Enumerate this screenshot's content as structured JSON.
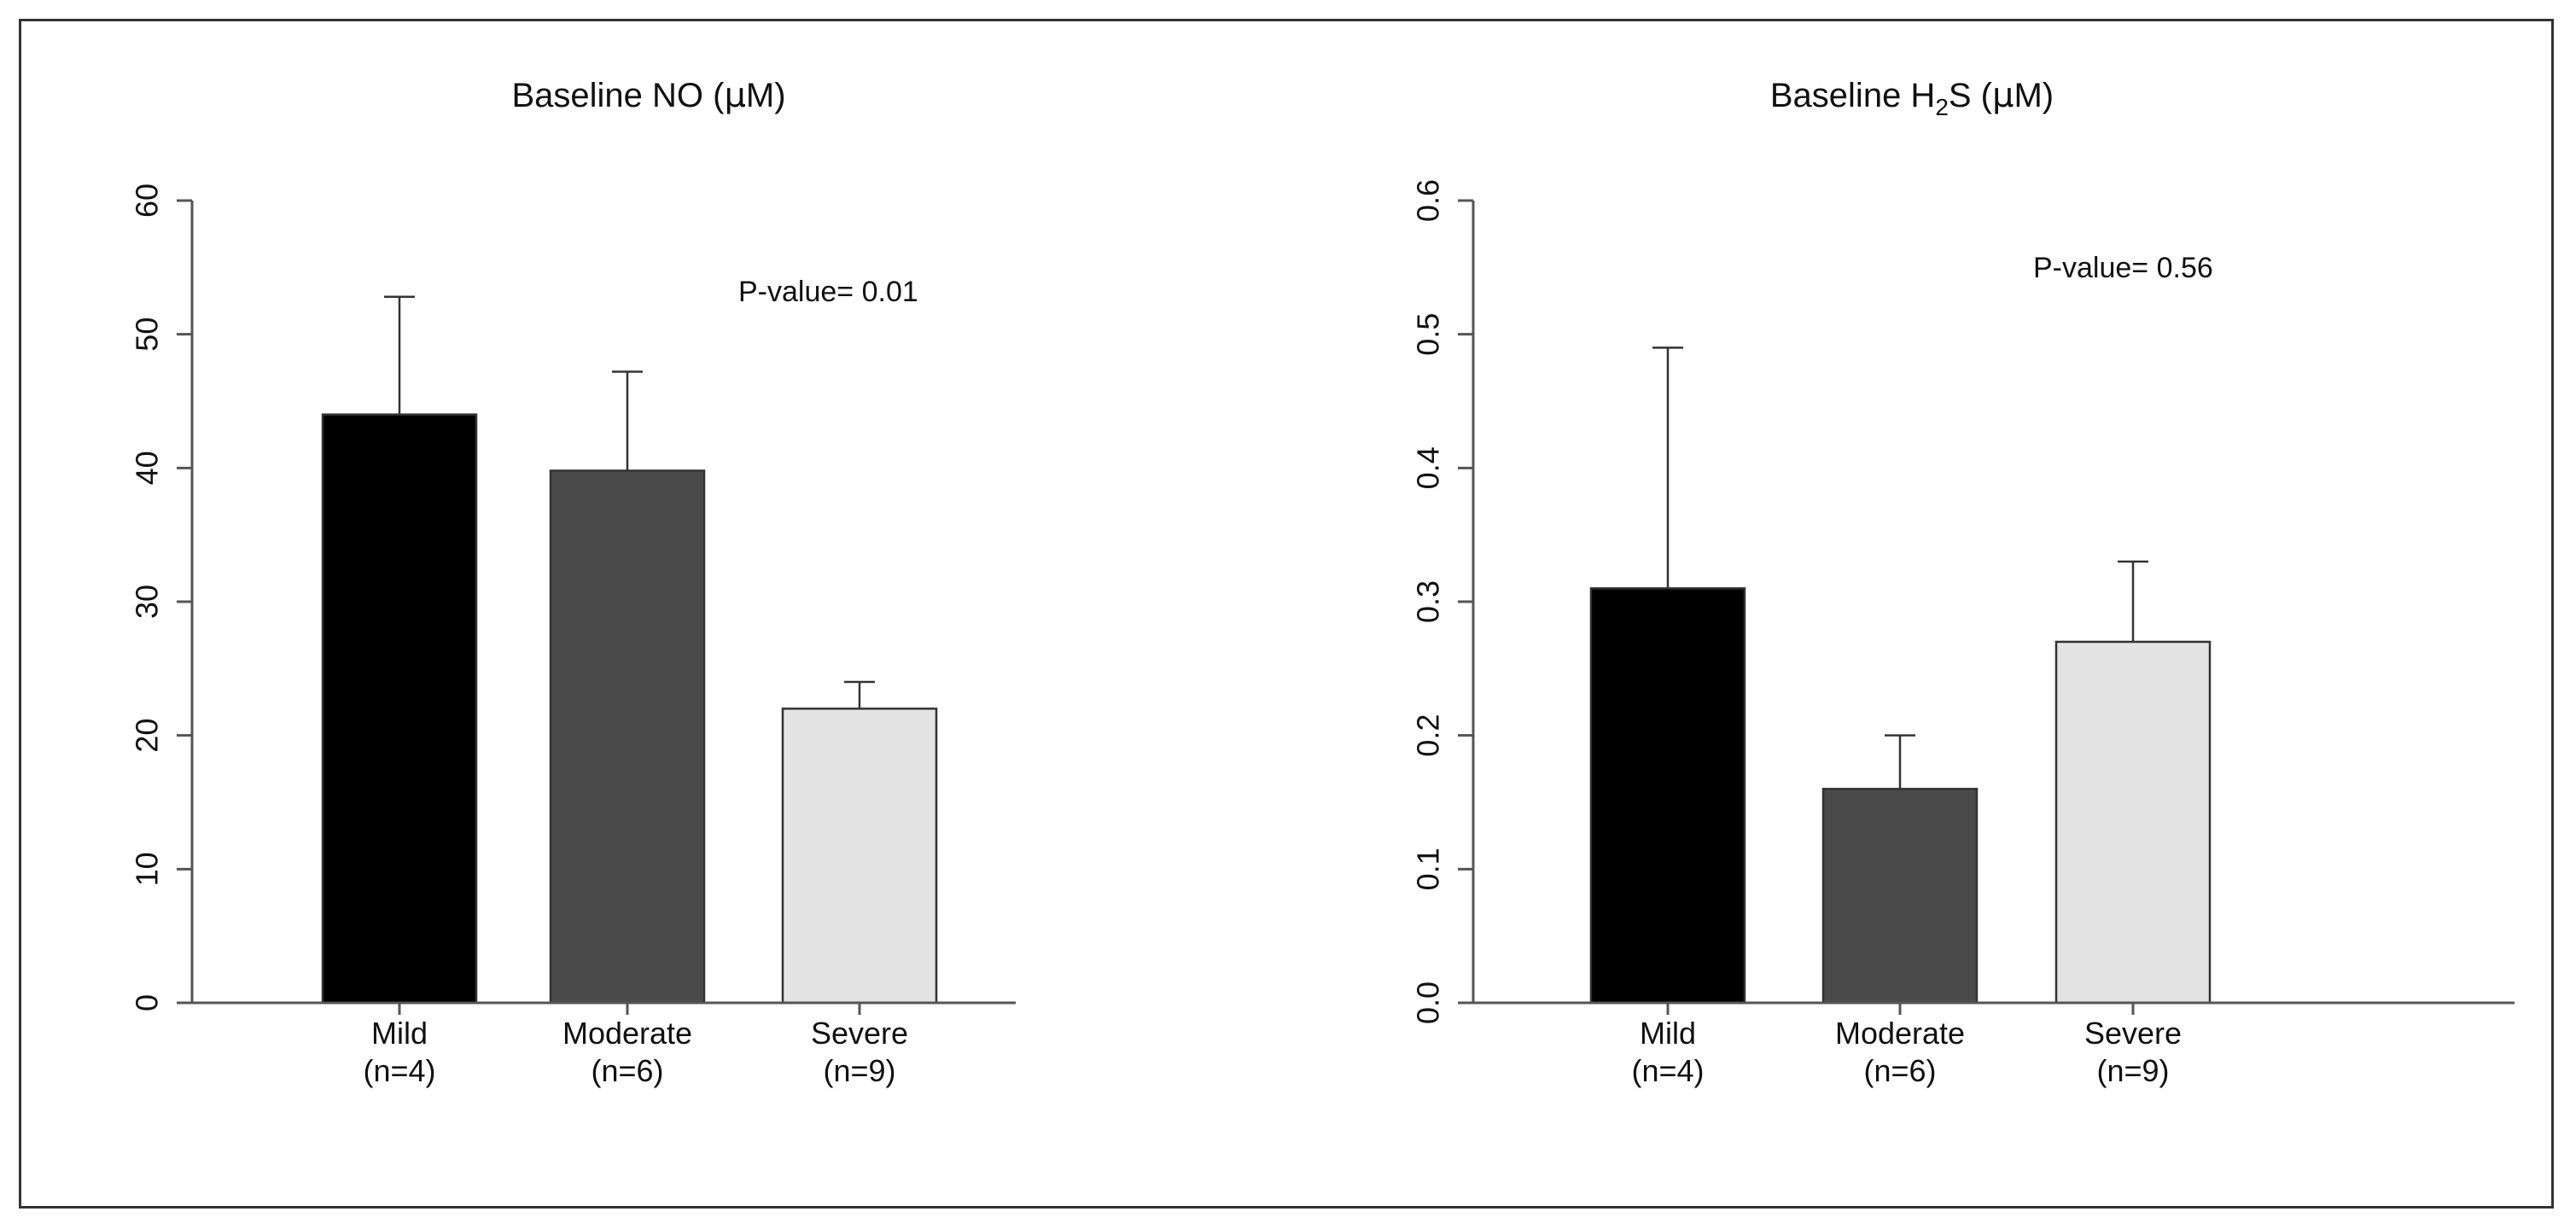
{
  "chart_data": [
    {
      "type": "bar",
      "title_parts": [
        "Baseline NO (",
        "μ",
        "M)"
      ],
      "categories": [
        "Mild",
        "Moderate",
        "Severe"
      ],
      "category_n": [
        "(n=4)",
        "(n=6)",
        "(n=9)"
      ],
      "values": [
        44,
        39.8,
        22
      ],
      "error_upper": [
        52.8,
        47.2,
        24
      ],
      "colors": [
        "#000000",
        "#4a4a4a",
        "#e3e3e3"
      ],
      "ylim": [
        0,
        60
      ],
      "yticks": [
        0,
        10,
        20,
        30,
        40,
        50,
        60
      ],
      "ytick_labels": [
        "0",
        "10",
        "20",
        "30",
        "40",
        "50",
        "60"
      ],
      "annotation": "P-value= 0.01",
      "xlabel": "",
      "ylabel": ""
    },
    {
      "type": "bar",
      "title_parts": [
        "Baseline H",
        "2",
        "S (",
        "μ",
        "M)"
      ],
      "categories": [
        "Mild",
        "Moderate",
        "Severe"
      ],
      "category_n": [
        "(n=4)",
        "(n=6)",
        "(n=9)"
      ],
      "values": [
        0.31,
        0.16,
        0.27
      ],
      "error_upper": [
        0.49,
        0.2,
        0.33
      ],
      "colors": [
        "#000000",
        "#4a4a4a",
        "#e3e3e3"
      ],
      "ylim": [
        0,
        0.6
      ],
      "yticks": [
        0,
        0.1,
        0.2,
        0.3,
        0.4,
        0.5,
        0.6
      ],
      "ytick_labels": [
        "0.0",
        "0.1",
        "0.2",
        "0.3",
        "0.4",
        "0.5",
        "0.6"
      ],
      "annotation": "P-value= 0.56",
      "xlabel": "",
      "ylabel": ""
    }
  ]
}
